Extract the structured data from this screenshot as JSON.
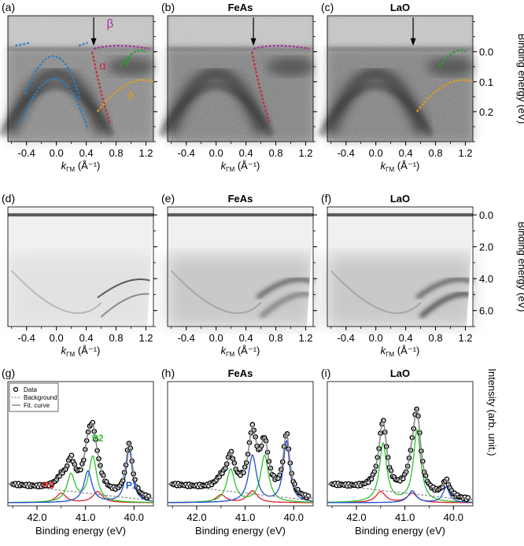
{
  "panels": [
    {
      "letter": "(a)",
      "title": "",
      "row": 0,
      "col": 0
    },
    {
      "letter": "(b)",
      "title": "FeAs",
      "row": 0,
      "col": 1
    },
    {
      "letter": "(c)",
      "title": "LaO",
      "row": 0,
      "col": 2
    },
    {
      "letter": "(d)",
      "title": "",
      "row": 1,
      "col": 0
    },
    {
      "letter": "(e)",
      "title": "FeAs",
      "row": 1,
      "col": 1
    },
    {
      "letter": "(f)",
      "title": "LaO",
      "row": 1,
      "col": 2
    },
    {
      "letter": "(g)",
      "title": "",
      "row": 2,
      "col": 0
    },
    {
      "letter": "(h)",
      "title": "FeAs",
      "row": 2,
      "col": 1
    },
    {
      "letter": "(i)",
      "title": "LaO",
      "row": 2,
      "col": 2
    }
  ],
  "k_axis": {
    "label_main": "k",
    "label_sub": "ΓM",
    "label_unit": " (Å⁻¹)",
    "ticks": [
      "-0.4",
      "0.0",
      "0.4",
      "0.8",
      "1.2"
    ],
    "tick_values": [
      -0.4,
      0.0,
      0.4,
      0.8,
      1.2
    ],
    "range": [
      -0.65,
      1.3
    ]
  },
  "row_a": {
    "ylabel": "Binding energy (eV)",
    "ticks": [
      "0.0",
      "0.1",
      "0.2"
    ],
    "tick_values": [
      0.0,
      0.1,
      0.2
    ],
    "range": [
      -0.12,
      0.3
    ],
    "band_labels": [
      {
        "text": "β",
        "color": "#a0329b",
        "k": 0.72,
        "e": -0.08
      },
      {
        "text": "α",
        "color": "#c8283c",
        "k": 0.62,
        "e": 0.06
      },
      {
        "text": "γ",
        "color": "#2aa02a",
        "k": 0.95,
        "e": 0.04
      },
      {
        "text": "δ",
        "color": "#e69b1e",
        "k": 1.0,
        "e": 0.16
      }
    ],
    "arrow_k": 0.5
  },
  "row_d": {
    "ylabel": "Binding energy (eV)",
    "ticks": [
      "0.0",
      "2.0",
      "4.0",
      "6.0"
    ],
    "tick_values": [
      0.0,
      2.0,
      4.0,
      6.0
    ],
    "range": [
      -0.5,
      7.0
    ]
  },
  "row_g": {
    "xlabel": "Binding energy (eV)",
    "ylabel": "Intensity (arb. unit.)",
    "ticks": [
      "42.0",
      "41.0",
      "40.0"
    ],
    "tick_values": [
      42.0,
      41.0,
      40.0
    ],
    "range": [
      42.6,
      39.6
    ],
    "legend": [
      "Data",
      "Background",
      "Fit. curve"
    ],
    "peak_labels": [
      {
        "text": "P3",
        "color": "#e0202a"
      },
      {
        "text": "P2",
        "color": "#2fc02f"
      },
      {
        "text": "P1",
        "color": "#1f4fd0"
      }
    ]
  },
  "colors": {
    "blue_dash": "#2a7fc0",
    "magenta": "#a0329b",
    "red": "#c8283c",
    "green": "#2aa02a",
    "orange": "#e69b1e",
    "p1": "#1f4fd0",
    "p2": "#2fc02f",
    "p3": "#e0202a"
  }
}
